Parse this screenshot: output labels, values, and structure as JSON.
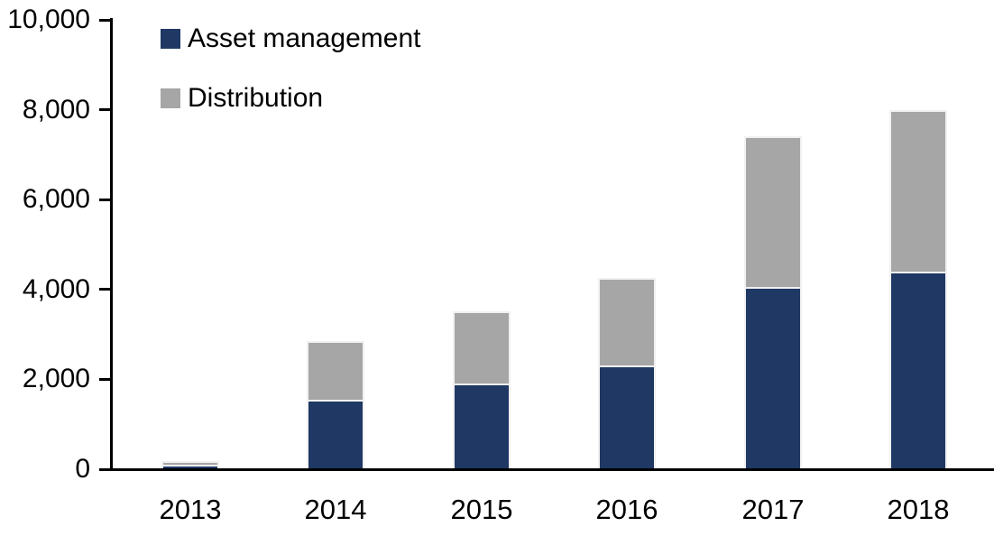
{
  "chart_data": {
    "type": "bar",
    "stacked": true,
    "title": "",
    "xlabel": "",
    "ylabel": "",
    "categories": [
      "2013",
      "2014",
      "2015",
      "2016",
      "2017",
      "2018"
    ],
    "series": [
      {
        "name": "Asset management",
        "color": "#1F3864",
        "values": [
          100,
          1550,
          1900,
          2300,
          4050,
          4400
        ]
      },
      {
        "name": "Distribution",
        "color": "#A6A6A6",
        "values": [
          80,
          1300,
          1600,
          1950,
          3350,
          3600
        ]
      }
    ],
    "totals": [
      180,
      2850,
      3500,
      4250,
      7400,
      8000
    ],
    "ylim": [
      0,
      10000
    ],
    "yticks": [
      {
        "value": 0,
        "label": "0"
      },
      {
        "value": 2000,
        "label": "2,000"
      },
      {
        "value": 4000,
        "label": "4,000"
      },
      {
        "value": 6000,
        "label": "6,000"
      },
      {
        "value": 8000,
        "label": "8,000"
      },
      {
        "value": 10000,
        "label": "10,000"
      }
    ],
    "grid": false,
    "legend_position": "top-left",
    "axis_color": "#000000",
    "background_color": "#FFFFFF",
    "bar_border_color": "#F1F1F1"
  }
}
